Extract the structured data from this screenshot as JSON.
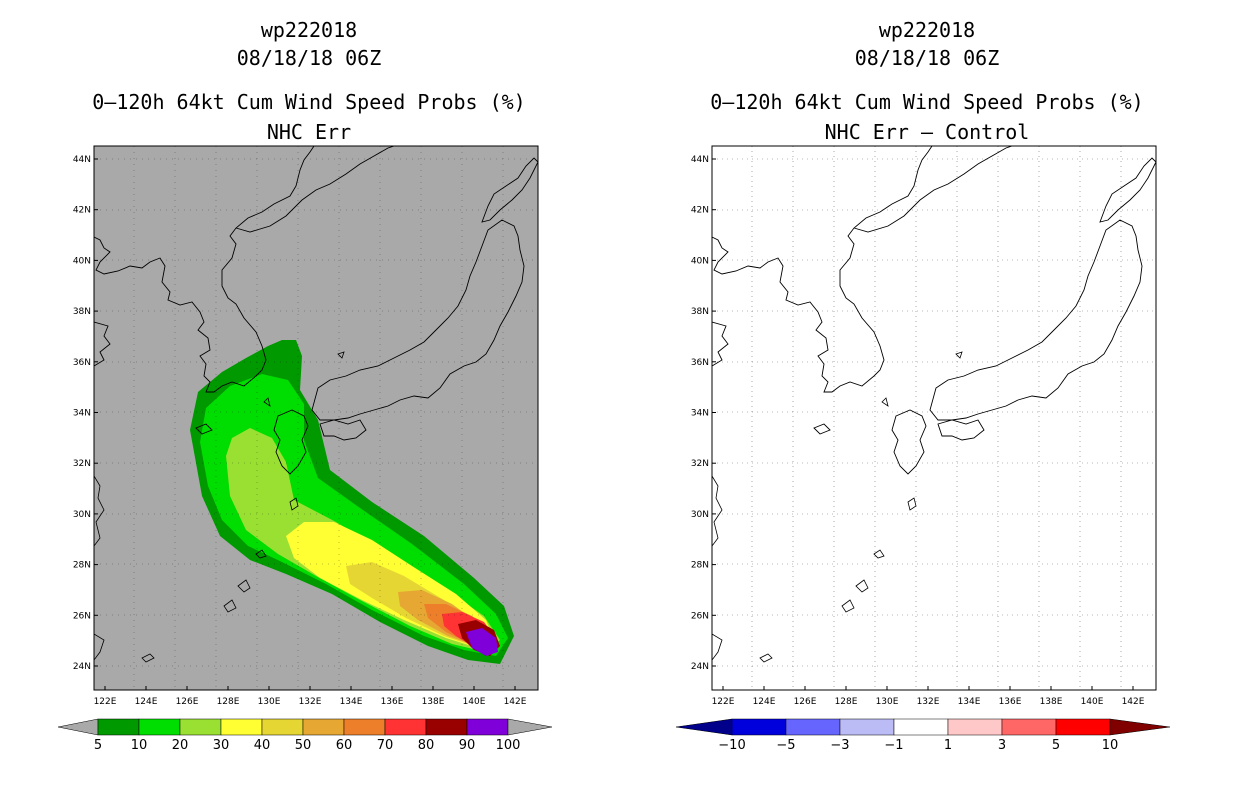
{
  "left_panel": {
    "storm_id": "wp222018",
    "datetime": "08/18/18 06Z",
    "title": "0–120h 64kt Cum Wind Speed Probs (%)",
    "subtitle": "NHC Err",
    "background_color": "#a9a9a9",
    "colorbar": {
      "colors": [
        "#009900",
        "#00dd00",
        "#99e033",
        "#ffff33",
        "#e6d633",
        "#e6a833",
        "#ee7f2a",
        "#ff3333",
        "#990000",
        "#8000d9"
      ],
      "labels": [
        "5",
        "10",
        "20",
        "30",
        "40",
        "50",
        "60",
        "70",
        "80",
        "90",
        "100"
      ],
      "end_color": "#a9a9a9"
    }
  },
  "right_panel": {
    "storm_id": "wp222018",
    "datetime": "08/18/18 06Z",
    "title": "0–120h 64kt Cum Wind Speed Probs (%)",
    "subtitle": "NHC Err – Control",
    "background_color": "#ffffff",
    "colorbar": {
      "colors": [
        "#0000dd",
        "#6666ff",
        "#bbbbf6",
        "#ffffff",
        "#ffc8c8",
        "#ff6666",
        "#ff0000"
      ],
      "labels": [
        "−10",
        "−5",
        "−3",
        "−1",
        "1",
        "3",
        "5",
        "10"
      ],
      "low_end_color": "#00008b",
      "high_end_color": "#800000"
    }
  },
  "axes": {
    "lon_labels": [
      "122E",
      "124E",
      "126E",
      "128E",
      "130E",
      "132E",
      "134E",
      "136E",
      "138E",
      "140E",
      "142E"
    ],
    "lat_labels": [
      "44N",
      "42N",
      "40N",
      "38N",
      "36N",
      "34N",
      "32N",
      "30N",
      "28N",
      "26N",
      "24N"
    ]
  }
}
